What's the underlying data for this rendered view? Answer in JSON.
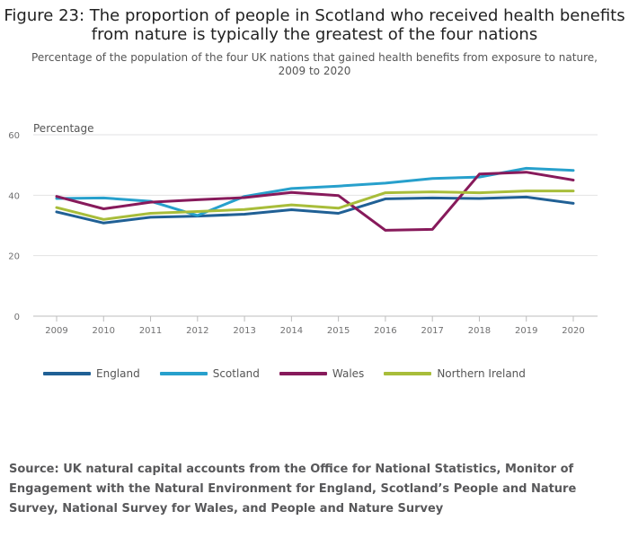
{
  "title": "Figure 23: The proportion of people in Scotland who received health benefits from nature is typically the greatest of the four nations",
  "subtitle": "Percentage of the population of the four UK nations that gained health benefits from exposure to nature, 2009 to 2020",
  "source": "Source: UK natural capital accounts from the Office for National Statistics, Monitor of Engagement with the Natural Environment for England, Scotland’s People and Nature Survey, National Survey for Wales, and People and Nature Survey",
  "chart_data": {
    "type": "line",
    "ylabel": "Percentage",
    "ylim": [
      0,
      60
    ],
    "yticks": [
      0,
      20,
      40,
      60
    ],
    "x": [
      "2009",
      "2010",
      "2011",
      "2012",
      "2013",
      "2014",
      "2015",
      "2016",
      "2017",
      "2018",
      "2019",
      "2020"
    ],
    "grid": true,
    "legend_position": "bottom",
    "series": [
      {
        "name": "England",
        "color": "#206095",
        "values": [
          34.5,
          30.8,
          32.7,
          33.1,
          33.7,
          35.2,
          34.0,
          38.8,
          39.1,
          38.9,
          39.4,
          37.3
        ]
      },
      {
        "name": "Scotland",
        "color": "#27a0cc",
        "values": [
          38.9,
          39.1,
          38.0,
          33.3,
          39.6,
          42.2,
          43.0,
          44.0,
          45.5,
          46.0,
          48.9,
          48.2
        ]
      },
      {
        "name": "Wales",
        "color": "#871a5b",
        "values": [
          39.6,
          35.5,
          37.7,
          38.5,
          39.2,
          40.9,
          39.9,
          28.4,
          28.7,
          47.0,
          47.6,
          45.0
        ]
      },
      {
        "name": "Northern Ireland",
        "color": "#a8bd3a",
        "values": [
          35.9,
          32.0,
          34.0,
          34.6,
          35.3,
          36.8,
          35.7,
          40.8,
          41.1,
          40.8,
          41.4,
          41.4
        ]
      }
    ]
  }
}
